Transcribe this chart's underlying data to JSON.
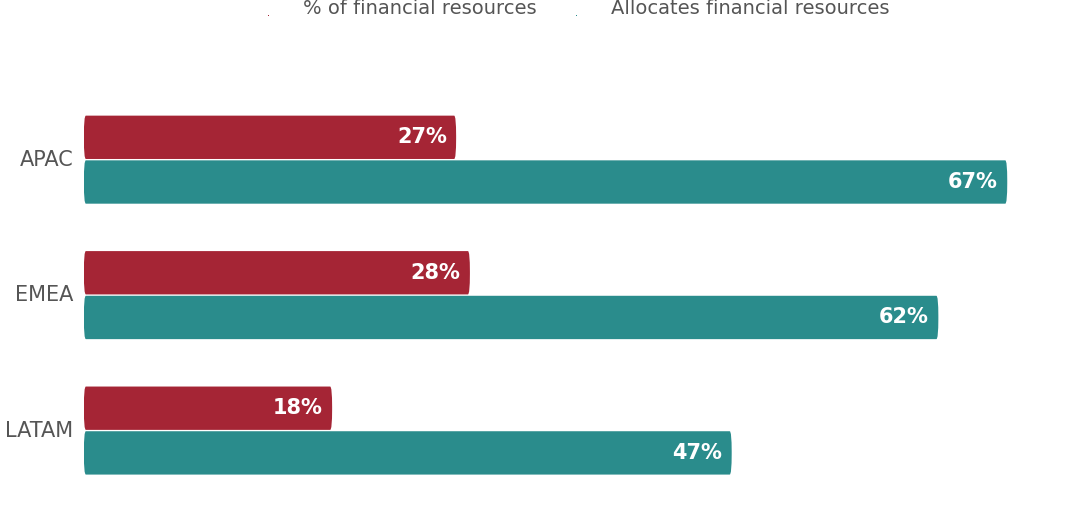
{
  "regions": [
    "APAC",
    "EMEA",
    "LATAM"
  ],
  "pct_financial": [
    27,
    28,
    18
  ],
  "allocates_financial": [
    67,
    62,
    47
  ],
  "color_red": "#A52535",
  "color_teal": "#2A8C8C",
  "legend_label_red": "% of financial resources",
  "legend_label_teal": "Allocates financial resources",
  "background_color": "#FFFFFF",
  "text_color_labels": "#555555",
  "label_fontsize": 15,
  "value_fontsize": 15,
  "legend_fontsize": 14,
  "bar_height": 0.3,
  "xlim": [
    0,
    75
  ]
}
